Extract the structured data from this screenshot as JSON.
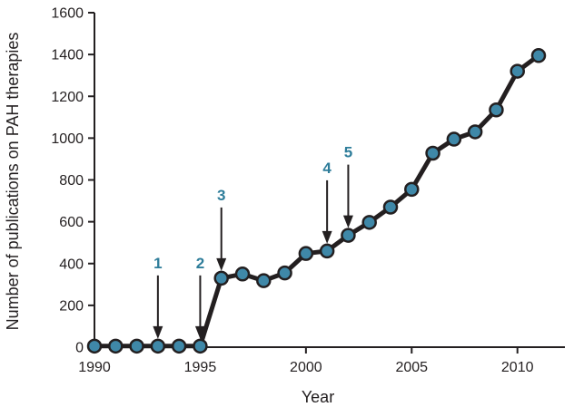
{
  "chart_data": {
    "type": "line",
    "title": "",
    "xlabel": "Year",
    "ylabel": "Number of publications on PAH therapies",
    "xlim": [
      1990,
      2011
    ],
    "ylim": [
      0,
      1600
    ],
    "x_ticks": [
      1990,
      1995,
      2000,
      2005,
      2010
    ],
    "y_ticks": [
      0,
      200,
      400,
      600,
      800,
      1000,
      1200,
      1400,
      1600
    ],
    "grid": false,
    "legend": "none",
    "colors": {
      "line": "#231f20",
      "marker_fill": "#3f88a8",
      "annotation_text": "#2e7d9a"
    },
    "series": [
      {
        "x": [
          1990,
          1991,
          1992,
          1993,
          1994,
          1995,
          1996,
          1997,
          1998,
          1999,
          2000,
          2001,
          2002,
          2003,
          2004,
          2005,
          2006,
          2007,
          2008,
          2009,
          2010,
          2011
        ],
        "values": [
          5,
          5,
          5,
          5,
          5,
          5,
          330,
          350,
          318,
          355,
          448,
          460,
          535,
          597,
          670,
          755,
          928,
          995,
          1030,
          1135,
          1320,
          1395
        ]
      }
    ],
    "annotations": [
      {
        "label": "1",
        "x": 1993
      },
      {
        "label": "2",
        "x": 1995
      },
      {
        "label": "3",
        "x": 1996
      },
      {
        "label": "4",
        "x": 2001
      },
      {
        "label": "5",
        "x": 2002
      }
    ]
  }
}
